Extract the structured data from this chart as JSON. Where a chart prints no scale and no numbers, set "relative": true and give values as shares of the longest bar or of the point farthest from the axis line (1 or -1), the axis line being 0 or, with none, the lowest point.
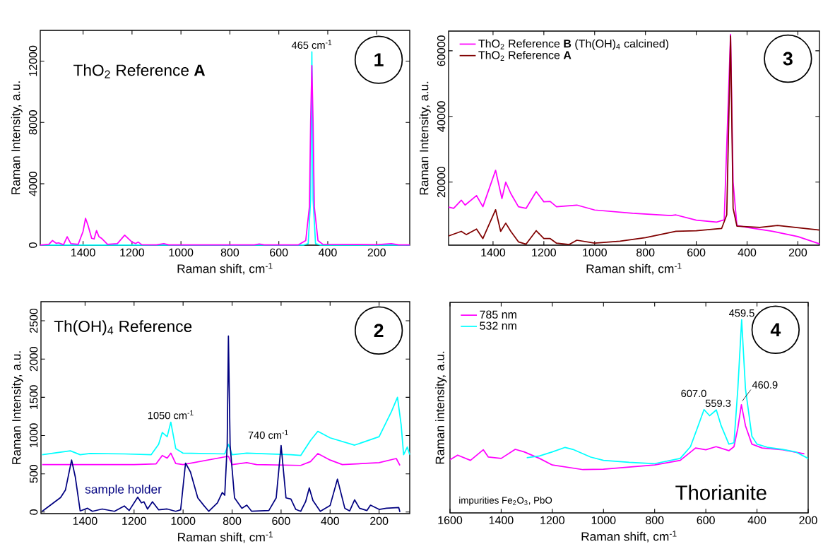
{
  "chart_data": [
    {
      "type": "line",
      "title": "ThO$_{2}$ Reference **A**",
      "xlabel": "Raman shift, cm$^{-1}$",
      "ylabel": "Raman Intensity, a.u.",
      "xlim": [
        1575,
        65
      ],
      "ylim": [
        0,
        14000
      ],
      "xticks": [
        1400,
        1200,
        1000,
        800,
        600,
        400,
        200
      ],
      "yticks": [
        0,
        4000,
        8000,
        12000
      ],
      "annotations": [
        {
          "text": "465 cm$^{-1}$",
          "x": 465,
          "y": 12600
        },
        "1"
      ],
      "series": [
        {
          "color": "#00ffff",
          "x": [
            1575,
            1000,
            500,
            480,
            470,
            465,
            460,
            450,
            430,
            300,
            65
          ],
          "values": [
            0,
            0,
            0,
            100,
            3000,
            12600,
            3000,
            100,
            0,
            0,
            0
          ]
        },
        {
          "color": "#ff00ff",
          "x": [
            1575,
            1540,
            1525,
            1510,
            1500,
            1480,
            1465,
            1450,
            1420,
            1400,
            1390,
            1380,
            1365,
            1355,
            1345,
            1335,
            1325,
            1300,
            1260,
            1230,
            1200,
            1185,
            1175,
            1160,
            1100,
            1070,
            1050,
            900,
            700,
            680,
            660,
            520,
            490,
            475,
            470,
            465,
            460,
            455,
            440,
            420,
            200,
            140,
            110,
            65
          ],
          "values": [
            0,
            50,
            300,
            120,
            150,
            30,
            550,
            100,
            50,
            900,
            1750,
            1300,
            450,
            400,
            950,
            550,
            450,
            50,
            100,
            650,
            200,
            100,
            200,
            30,
            20,
            100,
            20,
            20,
            20,
            70,
            20,
            20,
            300,
            2500,
            8000,
            11700,
            8000,
            2500,
            300,
            50,
            30,
            100,
            20,
            20
          ]
        }
      ]
    },
    {
      "type": "line",
      "title": "Th(OH)$_{4}$ Reference",
      "xlabel": "Raman shift, cm$^{-1}$",
      "ylabel": "Raman Intensity, a.u.",
      "xlim": [
        1580,
        75
      ],
      "ylim": [
        -20,
        2750
      ],
      "xticks": [
        1400,
        1200,
        1000,
        800,
        600,
        400,
        200
      ],
      "yticks": [
        0,
        500,
        1000,
        1500,
        2000,
        2500
      ],
      "annotations": [
        {
          "text": "1050 cm$^{-1}$",
          "x": 1050,
          "y": 1175
        },
        {
          "text": "740 cm$^{-1}$",
          "x": 740,
          "y": 770
        },
        "2"
      ],
      "series": [
        {
          "color": "#00ffff",
          "x": [
            1575,
            1460,
            1420,
            1380,
            1240,
            1130,
            1100,
            1085,
            1065,
            1050,
            1030,
            1000,
            830,
            815,
            800,
            740,
            560,
            520,
            480,
            450,
            400,
            300,
            200,
            150,
            125,
            110,
            100,
            85,
            75
          ],
          "values": [
            750,
            800,
            750,
            765,
            760,
            750,
            885,
            1040,
            985,
            1175,
            830,
            770,
            760,
            885,
            750,
            770,
            750,
            740,
            935,
            1055,
            970,
            875,
            985,
            1310,
            1500,
            1140,
            750,
            850,
            750
          ]
        },
        {
          "color": "#ff00ff",
          "x": [
            1575,
            1200,
            1110,
            1085,
            1065,
            1050,
            1030,
            1000,
            815,
            800,
            740,
            700,
            520,
            480,
            450,
            400,
            350,
            200,
            130,
            115
          ],
          "values": [
            620,
            620,
            630,
            740,
            705,
            770,
            635,
            620,
            730,
            620,
            645,
            620,
            610,
            660,
            765,
            680,
            620,
            645,
            700,
            610
          ]
        },
        {
          "name": "sample holder",
          "color": "#000080",
          "x": [
            1575,
            1500,
            1480,
            1455,
            1440,
            1420,
            1390,
            1370,
            1330,
            1280,
            1240,
            1220,
            1185,
            1170,
            1160,
            1145,
            1125,
            1100,
            1065,
            1030,
            1010,
            990,
            970,
            940,
            915,
            895,
            860,
            840,
            830,
            820,
            815,
            808,
            790,
            760,
            740,
            720,
            650,
            620,
            600,
            580,
            560,
            540,
            520,
            500,
            485,
            470,
            440,
            400,
            370,
            340,
            320,
            300,
            280,
            250,
            235,
            200,
            170,
            120,
            115
          ],
          "values": [
            10,
            190,
            290,
            680,
            460,
            15,
            50,
            10,
            40,
            10,
            80,
            20,
            195,
            120,
            135,
            40,
            135,
            30,
            40,
            10,
            30,
            640,
            525,
            185,
            85,
            10,
            120,
            255,
            220,
            870,
            2300,
            870,
            185,
            50,
            90,
            10,
            20,
            185,
            870,
            185,
            170,
            35,
            10,
            135,
            315,
            150,
            10,
            85,
            430,
            50,
            15,
            160,
            50,
            20,
            90,
            35,
            50,
            60,
            0
          ]
        }
      ]
    },
    {
      "type": "line",
      "xlabel": "Raman shift, cm$^{-1}$",
      "ylabel": "Raman Intensity, a.u.",
      "xlim": [
        1575,
        115
      ],
      "ylim": [
        800,
        66000
      ],
      "xticks": [
        1400,
        1200,
        1000,
        800,
        600,
        400,
        200
      ],
      "yticks": [
        20000,
        40000,
        60000
      ],
      "legend": "top left",
      "annotations": [
        "3"
      ],
      "series": [
        {
          "name": "ThO$_{2}$ Reference **B** (Th(OH)$_{4}$ calcined)",
          "color": "#ff00ff",
          "x": [
            1575,
            1555,
            1525,
            1510,
            1465,
            1440,
            1390,
            1365,
            1350,
            1330,
            1300,
            1270,
            1230,
            1200,
            1175,
            1150,
            1070,
            1000,
            850,
            700,
            680,
            600,
            520,
            490,
            475,
            465,
            455,
            440,
            400,
            300,
            200,
            115
          ],
          "values": [
            12400,
            12000,
            14500,
            13000,
            15900,
            12500,
            23600,
            15000,
            20000,
            16500,
            12500,
            12000,
            17100,
            14000,
            14100,
            12500,
            13000,
            11500,
            10500,
            9800,
            10000,
            8400,
            7800,
            8500,
            null,
            65000,
            20000,
            6800,
            6200,
            5000,
            3400,
            1200
          ]
        },
        {
          "name": "ThO$_{2}$ Reference **A**",
          "color": "#800000",
          "x": [
            1575,
            1525,
            1505,
            1465,
            1440,
            1390,
            1370,
            1350,
            1330,
            1300,
            1270,
            1230,
            1200,
            1175,
            1150,
            1100,
            1070,
            1000,
            900,
            800,
            680,
            600,
            500,
            480,
            465,
            455,
            440,
            350,
            280,
            115
          ],
          "values": [
            3600,
            5000,
            4000,
            5700,
            2800,
            11600,
            5000,
            7500,
            5000,
            1800,
            1100,
            5200,
            2800,
            2800,
            1400,
            1000,
            2300,
            1400,
            2000,
            3100,
            5000,
            5200,
            5900,
            10000,
            64500,
            12000,
            6600,
            6200,
            6800,
            5400
          ]
        }
      ]
    },
    {
      "type": "line",
      "relative": true,
      "title": "Thorianite",
      "xlabel": "Raman shift, cm$^{-1}$",
      "ylabel": "Raman intensity, a.u.",
      "xlim": [
        1600,
        200
      ],
      "xticks": [
        1600,
        1400,
        1200,
        1000,
        800,
        600,
        400,
        200
      ],
      "legend": "top left",
      "annotations": [
        {
          "text": "459.5",
          "x": 459.5,
          "y": 1.0
        },
        {
          "text": "460.9",
          "x": 460.9,
          "y": 0.56
        },
        {
          "text": "607.0",
          "x": 607.0,
          "y": 0.535
        },
        {
          "text": "559.3",
          "x": 559.3,
          "y": 0.533
        },
        "4",
        "impurities Fe$_{2}$O$_{3}$, PbO"
      ],
      "series": [
        {
          "name": "785 nm",
          "color": "#ff00ff",
          "x": [
            1600,
            1570,
            1520,
            1470,
            1450,
            1400,
            1345,
            1310,
            1250,
            1200,
            1080,
            1000,
            800,
            700,
            640,
            600,
            560,
            510,
            490,
            475,
            461,
            445,
            420,
            380,
            300,
            215
          ],
          "values": [
            0.275,
            0.299,
            0.272,
            0.327,
            0.289,
            0.282,
            0.329,
            0.316,
            0.282,
            0.248,
            0.224,
            0.226,
            0.248,
            0.272,
            0.336,
            0.327,
            0.343,
            0.322,
            0.343,
            0.438,
            0.56,
            0.451,
            0.356,
            0.336,
            0.327,
            0.306
          ]
        },
        {
          "name": "532 nm",
          "color": "#00ffff",
          "x": [
            1300,
            1250,
            1200,
            1150,
            1120,
            1050,
            1000,
            900,
            800,
            700,
            660,
            630,
            607,
            585,
            559,
            540,
            510,
            490,
            475,
            460,
            445,
            420,
            400,
            360,
            300,
            250,
            200
          ],
          "values": [
            0.286,
            0.295,
            0.316,
            0.339,
            0.329,
            0.289,
            0.272,
            0.262,
            0.255,
            0.282,
            0.343,
            0.451,
            0.535,
            0.503,
            0.533,
            0.451,
            0.356,
            0.363,
            0.641,
            1.0,
            0.641,
            0.397,
            0.356,
            0.34,
            0.329,
            0.316,
            0.282
          ]
        }
      ]
    }
  ]
}
